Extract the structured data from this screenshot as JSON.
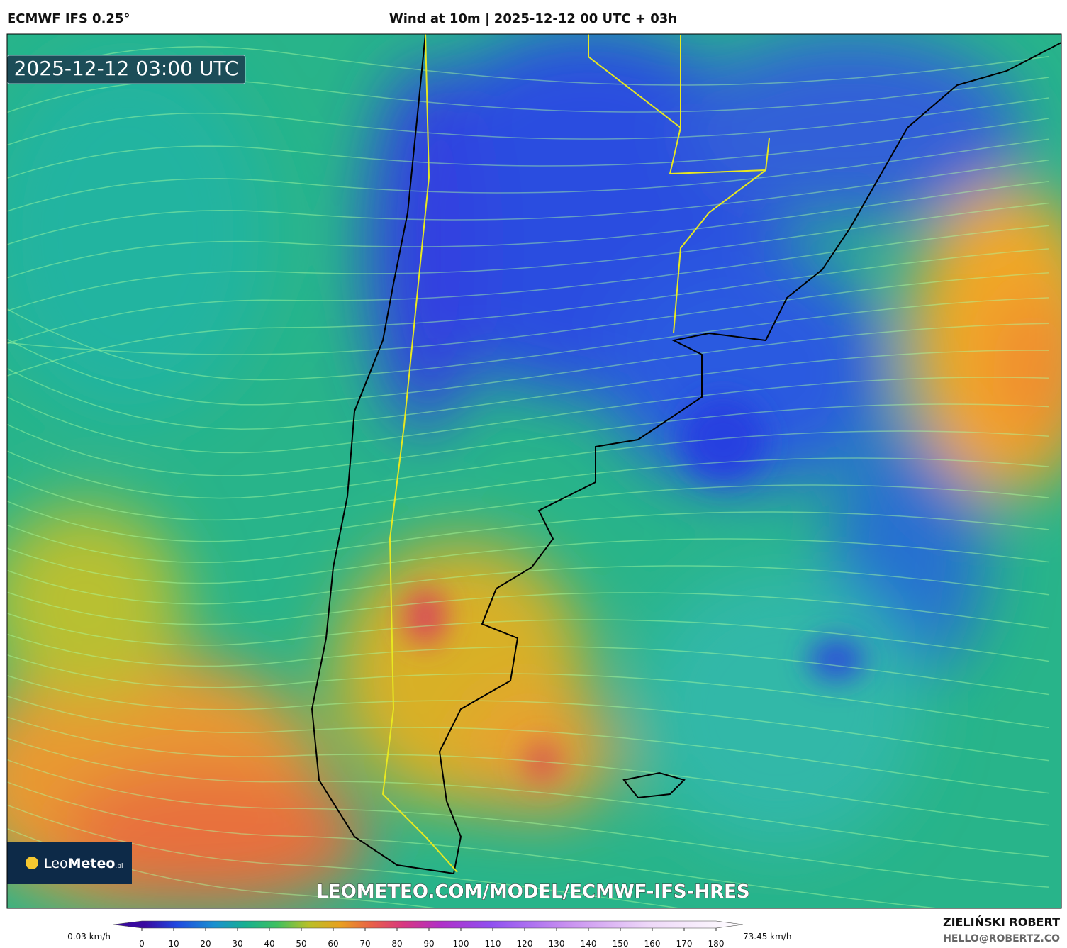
{
  "header": {
    "model": "ECMWF IFS 0.25°",
    "title": "Wind at 10m | 2025-12-12 00 UTC + 03h"
  },
  "map": {
    "timestamp": "2025-12-12 03:00 UTC",
    "watermark": "LEOMETEO.COM/MODEL/ECMWF-IFS-HRES",
    "logo": {
      "light": "Leo",
      "bold": "Meteo",
      "suffix": ".pl"
    }
  },
  "colorbar": {
    "min_label": "0.03 km/h",
    "max_label": "73.45 km/h",
    "ticks": [
      0,
      10,
      20,
      30,
      40,
      50,
      60,
      70,
      80,
      90,
      100,
      110,
      120,
      130,
      140,
      150,
      160,
      170,
      180
    ]
  },
  "credits": {
    "author": "ZIELIŃSKI ROBERT",
    "email": "HELLO@ROBERTZ.CO"
  }
}
